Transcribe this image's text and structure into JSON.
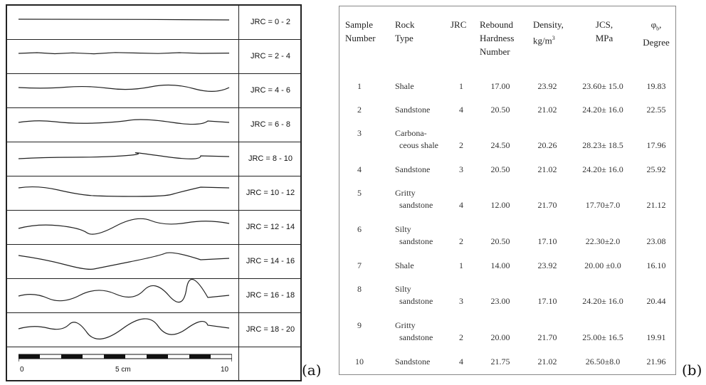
{
  "panel_a": {
    "tag": "(a)",
    "profiles": [
      {
        "label": "JRC = 0 - 2"
      },
      {
        "label": "JRC = 2 - 4"
      },
      {
        "label": "JRC = 4 - 6"
      },
      {
        "label": "JRC = 6 - 8"
      },
      {
        "label": "JRC = 8 - 10"
      },
      {
        "label": "JRC = 10 - 12"
      },
      {
        "label": "JRC = 12 - 14"
      },
      {
        "label": "JRC = 14 - 16"
      },
      {
        "label": "JRC = 16 - 18"
      },
      {
        "label": "JRC = 18 - 20"
      }
    ],
    "scale": {
      "start": "0",
      "mid": "5 cm",
      "end": "10"
    }
  },
  "panel_b": {
    "tag": "(b)",
    "headers": {
      "sample": [
        "Sample",
        "Number"
      ],
      "rock": [
        "Rock",
        "Type"
      ],
      "jrc": "JRC",
      "rebound": [
        "Rebound",
        "Hardness",
        "Number"
      ],
      "density": [
        "Density,",
        "kg/m"
      ],
      "density_sup": "3",
      "jcs": [
        "JCS,",
        "MPa"
      ],
      "phi": [
        "φ",
        "b",
        ","
      ],
      "phi_unit": "Degree"
    },
    "rows": [
      {
        "num": "1",
        "rock": [
          "Shale"
        ],
        "jrc": "1",
        "rebound": "17.00",
        "density": "23.92",
        "jcs": "23.60± 15.0",
        "phi": "19.83"
      },
      {
        "num": "2",
        "rock": [
          "Sandstone"
        ],
        "jrc": "4",
        "rebound": "20.50",
        "density": "21.02",
        "jcs": "24.20± 16.0",
        "phi": "22.55"
      },
      {
        "num": "3",
        "rock": [
          "Carbona-",
          "ceous shale"
        ],
        "jrc": "2",
        "rebound": "24.50",
        "density": "20.26",
        "jcs": "28.23± 18.5",
        "phi": "17.96"
      },
      {
        "num": "4",
        "rock": [
          "Sandstone"
        ],
        "jrc": "3",
        "rebound": "20.50",
        "density": "21.02",
        "jcs": "24.20± 16.0",
        "phi": "25.92"
      },
      {
        "num": "5",
        "rock": [
          "Gritty",
          "sandstone"
        ],
        "jrc": "4",
        "rebound": "12.00",
        "density": "21.70",
        "jcs": "17.70±7.0",
        "phi": "21.12"
      },
      {
        "num": "6",
        "rock": [
          "Silty",
          "sandstone"
        ],
        "jrc": "2",
        "rebound": "20.50",
        "density": "17.10",
        "jcs": "22.30±2.0",
        "phi": "23.08"
      },
      {
        "num": "7",
        "rock": [
          "Shale"
        ],
        "jrc": "1",
        "rebound": "14.00",
        "density": "23.92",
        "jcs": "20.00 ±0.0",
        "phi": "16.10"
      },
      {
        "num": "8",
        "rock": [
          "Silty",
          "sandstone"
        ],
        "jrc": "3",
        "rebound": "23.00",
        "density": "17.10",
        "jcs": "24.20± 16.0",
        "phi": "20.44"
      },
      {
        "num": "9",
        "rock": [
          "Gritty",
          "sandstone"
        ],
        "jrc": "2",
        "rebound": "20.00",
        "density": "21.70",
        "jcs": "25.00± 16.5",
        "phi": "19.91"
      },
      {
        "num": "10",
        "rock": [
          "Sandstone"
        ],
        "jrc": "4",
        "rebound": "21.75",
        "density": "21.02",
        "jcs": "26.50±8.0",
        "phi": "21.96"
      }
    ]
  }
}
